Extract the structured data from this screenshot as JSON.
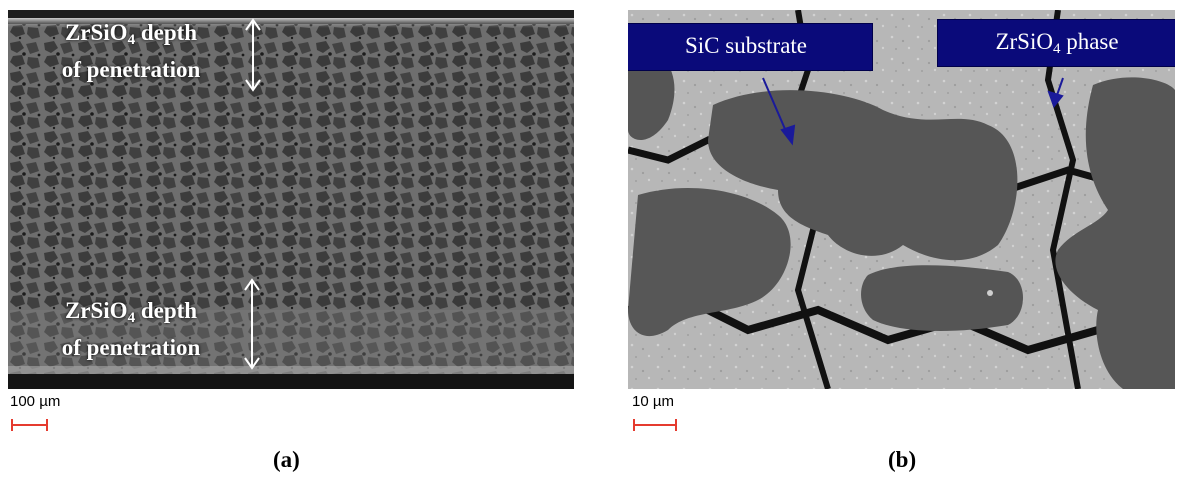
{
  "panel_a": {
    "caption": "(a)",
    "scale_label": "100 µm",
    "top_label": {
      "line1_prefix": "ZrSiO",
      "line1_sub": "4",
      "line1_suffix": " depth",
      "line2": "of penetration"
    },
    "bottom_label": {
      "line1_prefix": "ZrSiO",
      "line1_sub": "4",
      "line1_suffix": " depth",
      "line2": "of penetration"
    }
  },
  "panel_b": {
    "caption": "(b)",
    "scale_label": "10 µm",
    "label_substrate": "SiC substrate",
    "label_phase": {
      "prefix": "ZrSiO",
      "sub": "4",
      "suffix": " phase"
    }
  },
  "colors": {
    "scale_bar": "#e53b2f",
    "label_box": "#0a0a7a",
    "arrow_blue": "#1a1a9a",
    "arrow_white": "#ffffff"
  }
}
